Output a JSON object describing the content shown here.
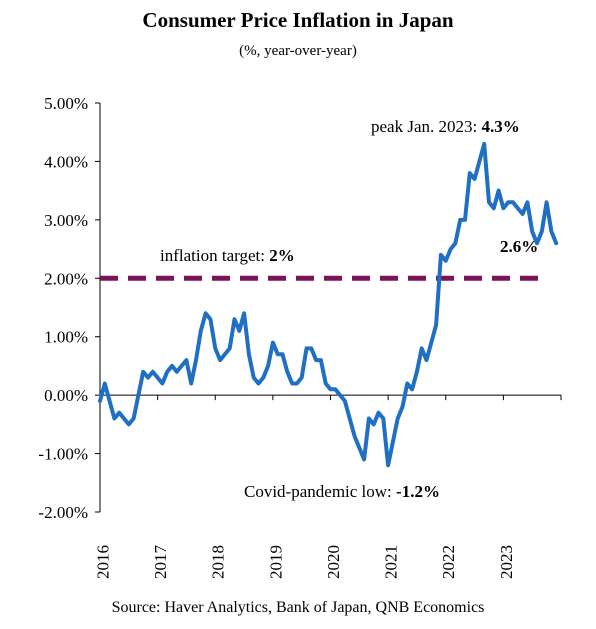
{
  "chart_data": {
    "type": "line",
    "title": "Consumer Price Inflation in Japan",
    "subtitle": "(%, year-over-year)",
    "source": "Source: Haver Analytics, Bank of Japan, QNB Economics",
    "ylim": [
      -2.0,
      5.0
    ],
    "y_ticks": [
      -2.0,
      -1.0,
      0.0,
      1.0,
      2.0,
      3.0,
      4.0,
      5.0
    ],
    "y_tick_labels": [
      "-2.00%",
      "-1.00%",
      "0.00%",
      "1.00%",
      "2.00%",
      "3.00%",
      "4.00%",
      "5.00%"
    ],
    "x_tick_labels": [
      "2016",
      "2017",
      "2018",
      "2019",
      "2020",
      "2021",
      "2022",
      "2023"
    ],
    "xlim": [
      0,
      96
    ],
    "grid": false,
    "series": [
      {
        "color": "#1f6fc4",
        "x": [
          0,
          1,
          2,
          3,
          4,
          5,
          6,
          7,
          8,
          9,
          10,
          11,
          12,
          13,
          14,
          15,
          16,
          17,
          18,
          19,
          20,
          21,
          22,
          23,
          24,
          25,
          26,
          27,
          28,
          29,
          30,
          31,
          32,
          33,
          34,
          35,
          36,
          37,
          38,
          39,
          40,
          41,
          42,
          43,
          44,
          45,
          46,
          47,
          48,
          49,
          50,
          51,
          52,
          53,
          54,
          55,
          56,
          57,
          58,
          59,
          60,
          61,
          62,
          63,
          64,
          65,
          66,
          67,
          68,
          69,
          70,
          71,
          72,
          73,
          74,
          75,
          76,
          77,
          78,
          79,
          80,
          81,
          82,
          83,
          84,
          85,
          86,
          87,
          88,
          89,
          90,
          91,
          92,
          93,
          94,
          95
        ],
        "values": [
          -0.1,
          0.2,
          -0.1,
          -0.4,
          -0.3,
          -0.4,
          -0.5,
          -0.4,
          0.0,
          0.4,
          0.3,
          0.4,
          0.3,
          0.2,
          0.4,
          0.5,
          0.4,
          0.5,
          0.6,
          0.2,
          0.6,
          1.1,
          1.4,
          1.3,
          0.8,
          0.6,
          0.7,
          0.8,
          1.3,
          1.1,
          1.4,
          0.7,
          0.3,
          0.2,
          0.3,
          0.5,
          0.9,
          0.7,
          0.7,
          0.4,
          0.2,
          0.2,
          0.3,
          0.8,
          0.8,
          0.6,
          0.6,
          0.2,
          0.1,
          0.1,
          0.0,
          -0.1,
          -0.4,
          -0.7,
          -0.9,
          -1.1,
          -0.4,
          -0.5,
          -0.3,
          -0.4,
          -1.2,
          -0.8,
          -0.4,
          -0.2,
          0.2,
          0.1,
          0.4,
          0.8,
          0.6,
          0.9,
          1.2,
          2.4,
          2.3,
          2.5,
          2.6,
          3.0,
          3.0,
          3.8,
          3.7,
          4.0,
          4.3,
          3.3,
          3.2,
          3.5,
          3.2,
          3.3,
          3.3,
          3.2,
          3.1,
          3.3,
          2.8,
          2.6,
          2.8,
          3.3,
          2.8,
          2.6
        ]
      }
    ],
    "target_line": {
      "value": 2.0,
      "color": "#7a1458"
    },
    "annotations": {
      "target_prefix": "inflation target: ",
      "target_value": "2%",
      "peak_prefix": "peak Jan. 2023: ",
      "peak_value": "4.3%",
      "latest_value": "2.6%",
      "low_prefix": "Covid-pandemic low: ",
      "low_value": "-1.2%"
    }
  }
}
